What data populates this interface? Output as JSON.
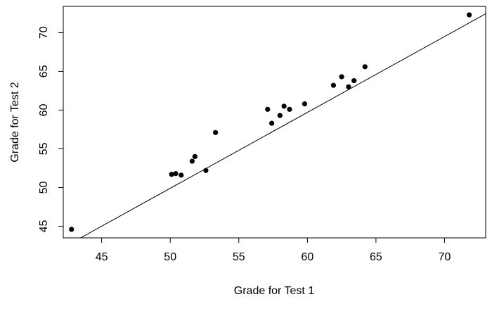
{
  "chart_data": {
    "type": "scatter",
    "title": "",
    "xlabel": "Grade for Test 1",
    "ylabel": "Grade for Test 2",
    "xlim": [
      42.2,
      73.0
    ],
    "ylim": [
      43.5,
      73.4
    ],
    "x_ticks": [
      45,
      50,
      55,
      60,
      65,
      70
    ],
    "y_ticks": [
      45,
      50,
      55,
      60,
      65,
      70
    ],
    "grid": false,
    "points": [
      {
        "x": 42.8,
        "y": 44.6
      },
      {
        "x": 50.1,
        "y": 51.7
      },
      {
        "x": 50.4,
        "y": 51.8
      },
      {
        "x": 50.8,
        "y": 51.6
      },
      {
        "x": 51.6,
        "y": 53.4
      },
      {
        "x": 51.8,
        "y": 54.0
      },
      {
        "x": 52.6,
        "y": 52.2
      },
      {
        "x": 53.3,
        "y": 57.1
      },
      {
        "x": 57.1,
        "y": 60.1
      },
      {
        "x": 57.4,
        "y": 58.3
      },
      {
        "x": 58.0,
        "y": 59.3
      },
      {
        "x": 58.3,
        "y": 60.5
      },
      {
        "x": 58.7,
        "y": 60.1
      },
      {
        "x": 59.8,
        "y": 60.8
      },
      {
        "x": 61.9,
        "y": 63.2
      },
      {
        "x": 62.5,
        "y": 64.3
      },
      {
        "x": 63.0,
        "y": 63.0
      },
      {
        "x": 63.4,
        "y": 63.8
      },
      {
        "x": 64.2,
        "y": 65.6
      },
      {
        "x": 71.8,
        "y": 72.3
      }
    ],
    "fit_line": {
      "intercept": 0.9,
      "slope": 0.98
    }
  }
}
